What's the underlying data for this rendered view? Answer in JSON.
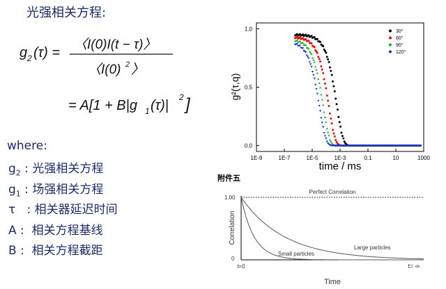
{
  "heading": "光强相关方程:",
  "equation": {
    "lhs": "g",
    "lhs_sub": "2",
    "lhs_arg": "(τ) =",
    "numerator": "〈I(0)I(t − τ)〉",
    "denominator": "〈I(0)",
    "denominator_sup": "2",
    "denominator_end": "〉",
    "line2": "= A[1 + B|g",
    "line2_sub": "1",
    "line2_end": "(τ)|",
    "line2_sup": "2",
    "line2_close": "]"
  },
  "where_label": "where:",
  "definitions": [
    {
      "sym": "g",
      "sub": "2",
      "text": ": 光强相关方程"
    },
    {
      "sym": "g",
      "sub": "1",
      "text": ": 场强相关方程"
    },
    {
      "sym": "τ",
      "sub": "",
      "text": "  : 相关器延迟时间"
    },
    {
      "sym": "A",
      "sub": "",
      "text": ":  相关方程基线"
    },
    {
      "sym": "B",
      "sub": "",
      "text": ":  相关方程截距"
    }
  ],
  "annex_label": "附件五",
  "chart_data": [
    {
      "type": "scatter",
      "xlabel": "time / ms",
      "ylabel": "g²(τ,q)",
      "x_scale": "log",
      "xlim": [
        1e-09,
        1000
      ],
      "ylim": [
        -0.05,
        1.05
      ],
      "x_ticks": [
        "1E-9",
        "1E-7",
        "1E-5",
        "1E-3",
        "0.1",
        "10",
        "1000"
      ],
      "y_ticks": [
        "0.0",
        "0.5",
        "1.0"
      ],
      "legend_position": "top-right",
      "series": [
        {
          "name": "30°",
          "color": "#000000",
          "plateau": 0.95,
          "decay_time": 0.0012,
          "x_start": 6e-07
        },
        {
          "name": "60°",
          "color": "#e01010",
          "plateau": 0.93,
          "decay_time": 0.00032,
          "x_start": 6e-07
        },
        {
          "name": "90°",
          "color": "#10b020",
          "plateau": 0.91,
          "decay_time": 0.00013,
          "x_start": 6e-07
        },
        {
          "name": "120°",
          "color": "#1030d0",
          "plateau": 0.89,
          "decay_time": 7e-05,
          "x_start": 6e-07
        }
      ]
    },
    {
      "type": "line",
      "xlabel": "Time",
      "ylabel": "Correlation",
      "x_ticks": [
        "t=0",
        "t= ∞"
      ],
      "y_ticks": [
        "1.00",
        "0"
      ],
      "annotations": [
        "Perfect Correlation",
        "Large particles",
        "Small particles"
      ],
      "series": [
        {
          "name": "Perfect Correlation",
          "style": "dotted",
          "shape": "constant",
          "value": 1.0
        },
        {
          "name": "Large particles",
          "style": "solid",
          "shape": "slow-decay",
          "value": 1.0
        },
        {
          "name": "Small particles",
          "style": "solid",
          "shape": "fast-decay",
          "value": 1.0
        }
      ]
    }
  ]
}
